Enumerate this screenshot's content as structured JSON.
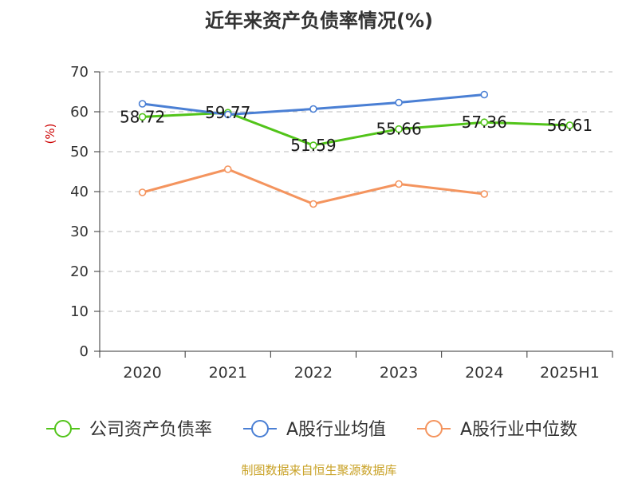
{
  "chart_data": {
    "type": "line",
    "title": "近年来资产负债率情况(%)",
    "ylabel": "(%)",
    "xlabel": "",
    "ylim": [
      0,
      70
    ],
    "yticks": [
      0,
      10,
      20,
      30,
      40,
      50,
      60,
      70
    ],
    "grid": true,
    "legend_position": "bottom",
    "categories": [
      "2020",
      "2021",
      "2022",
      "2023",
      "2024",
      "2025H1"
    ],
    "series": [
      {
        "name": "公司资产负债率",
        "color": "#52c41a",
        "values": [
          58.72,
          59.77,
          51.59,
          55.66,
          57.36,
          56.61
        ],
        "labels": [
          "58.72",
          "59.77",
          "51.59",
          "55.66",
          "57.36",
          "56.61"
        ]
      },
      {
        "name": "A股行业均值",
        "color": "#4a7fd4",
        "values": [
          62.0,
          59.3,
          60.7,
          62.3,
          64.3,
          null
        ]
      },
      {
        "name": "A股行业中位数",
        "color": "#f4945e",
        "values": [
          39.8,
          45.6,
          36.9,
          41.9,
          39.4,
          null
        ]
      }
    ]
  },
  "footer": {
    "source": "制图数据来自恒生聚源数据库"
  }
}
